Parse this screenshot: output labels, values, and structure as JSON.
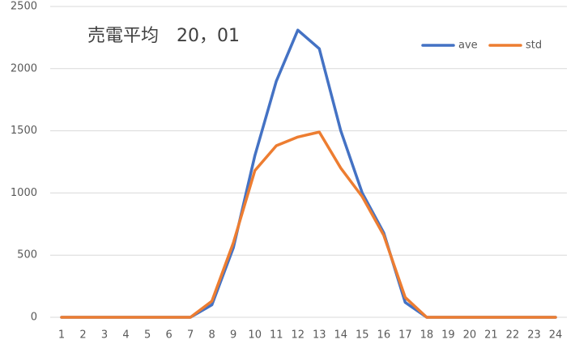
{
  "chart_data": {
    "type": "line",
    "title": "売電平均　20，01",
    "categories": [
      "1",
      "2",
      "3",
      "4",
      "5",
      "6",
      "7",
      "8",
      "9",
      "10",
      "11",
      "12",
      "13",
      "14",
      "15",
      "16",
      "17",
      "18",
      "19",
      "20",
      "21",
      "22",
      "23",
      "24"
    ],
    "series": [
      {
        "name": "ave",
        "color": "#4472c4",
        "values": [
          0,
          0,
          0,
          0,
          0,
          0,
          0,
          100,
          560,
          1300,
          1900,
          2310,
          2160,
          1500,
          1000,
          680,
          120,
          0,
          0,
          0,
          0,
          0,
          0,
          0
        ]
      },
      {
        "name": "std",
        "color": "#ed7d31",
        "values": [
          0,
          0,
          0,
          0,
          0,
          0,
          0,
          130,
          600,
          1180,
          1380,
          1450,
          1490,
          1200,
          970,
          660,
          160,
          0,
          0,
          0,
          0,
          0,
          0,
          0
        ]
      }
    ],
    "ylim": [
      0,
      2500
    ],
    "yticks": [
      0,
      500,
      1000,
      1500,
      2000,
      2500
    ],
    "grid": true,
    "legend": "top-right"
  }
}
